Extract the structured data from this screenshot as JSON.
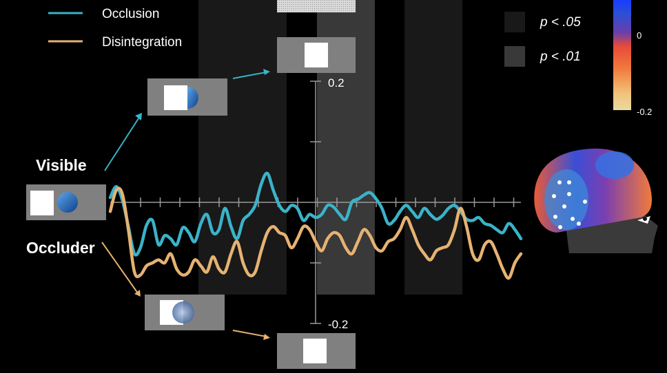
{
  "legend": {
    "items": [
      {
        "label": "Occlusion",
        "color": "#3ab3c9"
      },
      {
        "label": "Disintegration",
        "color": "#e6b272"
      }
    ]
  },
  "significance": {
    "items": [
      {
        "label": "p < .05",
        "color": "#191919"
      },
      {
        "label": "p < .01",
        "color": "#393939"
      }
    ]
  },
  "colorbar": {
    "tick_labels": [
      "0",
      "-0.2"
    ],
    "colors": [
      "#2a4fd6",
      "#6b3fa8",
      "#e84a3a",
      "#f07a3c",
      "#f2c27a",
      "#e8dba0"
    ]
  },
  "labels": {
    "visible": "Visible",
    "occluder": "Occluder"
  },
  "chart_data": {
    "type": "line",
    "title": "",
    "xlabel": "",
    "ylabel": "",
    "ylim": [
      -0.2,
      0.2
    ],
    "y_tick_labels": [
      "0.2",
      "-0.2"
    ],
    "grid": false,
    "series": [
      {
        "name": "Occlusion",
        "color": "#3ab3c9",
        "values": [
          0.008,
          0.026,
          0.004,
          -0.04,
          -0.085,
          -0.075,
          -0.038,
          -0.03,
          -0.07,
          -0.055,
          -0.06,
          -0.07,
          -0.042,
          -0.05,
          -0.065,
          -0.035,
          -0.02,
          -0.05,
          -0.045,
          -0.01,
          -0.04,
          -0.06,
          -0.03,
          -0.02,
          -0.005,
          0.03,
          0.048,
          0.02,
          -0.005,
          -0.015,
          -0.005,
          -0.01,
          -0.03,
          -0.02,
          -0.025,
          -0.02,
          -0.005,
          -0.008,
          -0.02,
          -0.028,
          0.0,
          0.005,
          0.012,
          0.016,
          0.006,
          -0.01,
          -0.035,
          -0.03,
          -0.015,
          -0.005,
          -0.015,
          -0.025,
          -0.01,
          -0.02,
          -0.028,
          -0.022,
          -0.01,
          -0.005,
          -0.015,
          -0.028,
          -0.03,
          -0.025,
          -0.035,
          -0.038,
          -0.045,
          -0.05,
          -0.035,
          -0.045,
          -0.06
        ]
      },
      {
        "name": "Disintegration",
        "color": "#e6b272",
        "values": [
          -0.015,
          0.02,
          0.014,
          -0.045,
          -0.115,
          -0.12,
          -0.105,
          -0.1,
          -0.095,
          -0.1,
          -0.085,
          -0.11,
          -0.12,
          -0.115,
          -0.095,
          -0.105,
          -0.115,
          -0.09,
          -0.11,
          -0.115,
          -0.085,
          -0.065,
          -0.1,
          -0.12,
          -0.115,
          -0.08,
          -0.05,
          -0.04,
          -0.05,
          -0.055,
          -0.075,
          -0.06,
          -0.04,
          -0.045,
          -0.065,
          -0.08,
          -0.06,
          -0.05,
          -0.055,
          -0.075,
          -0.085,
          -0.065,
          -0.045,
          -0.055,
          -0.075,
          -0.08,
          -0.065,
          -0.06,
          -0.045,
          -0.025,
          -0.045,
          -0.07,
          -0.085,
          -0.095,
          -0.08,
          -0.075,
          -0.07,
          -0.045,
          -0.01,
          -0.04,
          -0.085,
          -0.095,
          -0.07,
          -0.065,
          -0.085,
          -0.11,
          -0.125,
          -0.1,
          -0.085
        ]
      }
    ]
  }
}
